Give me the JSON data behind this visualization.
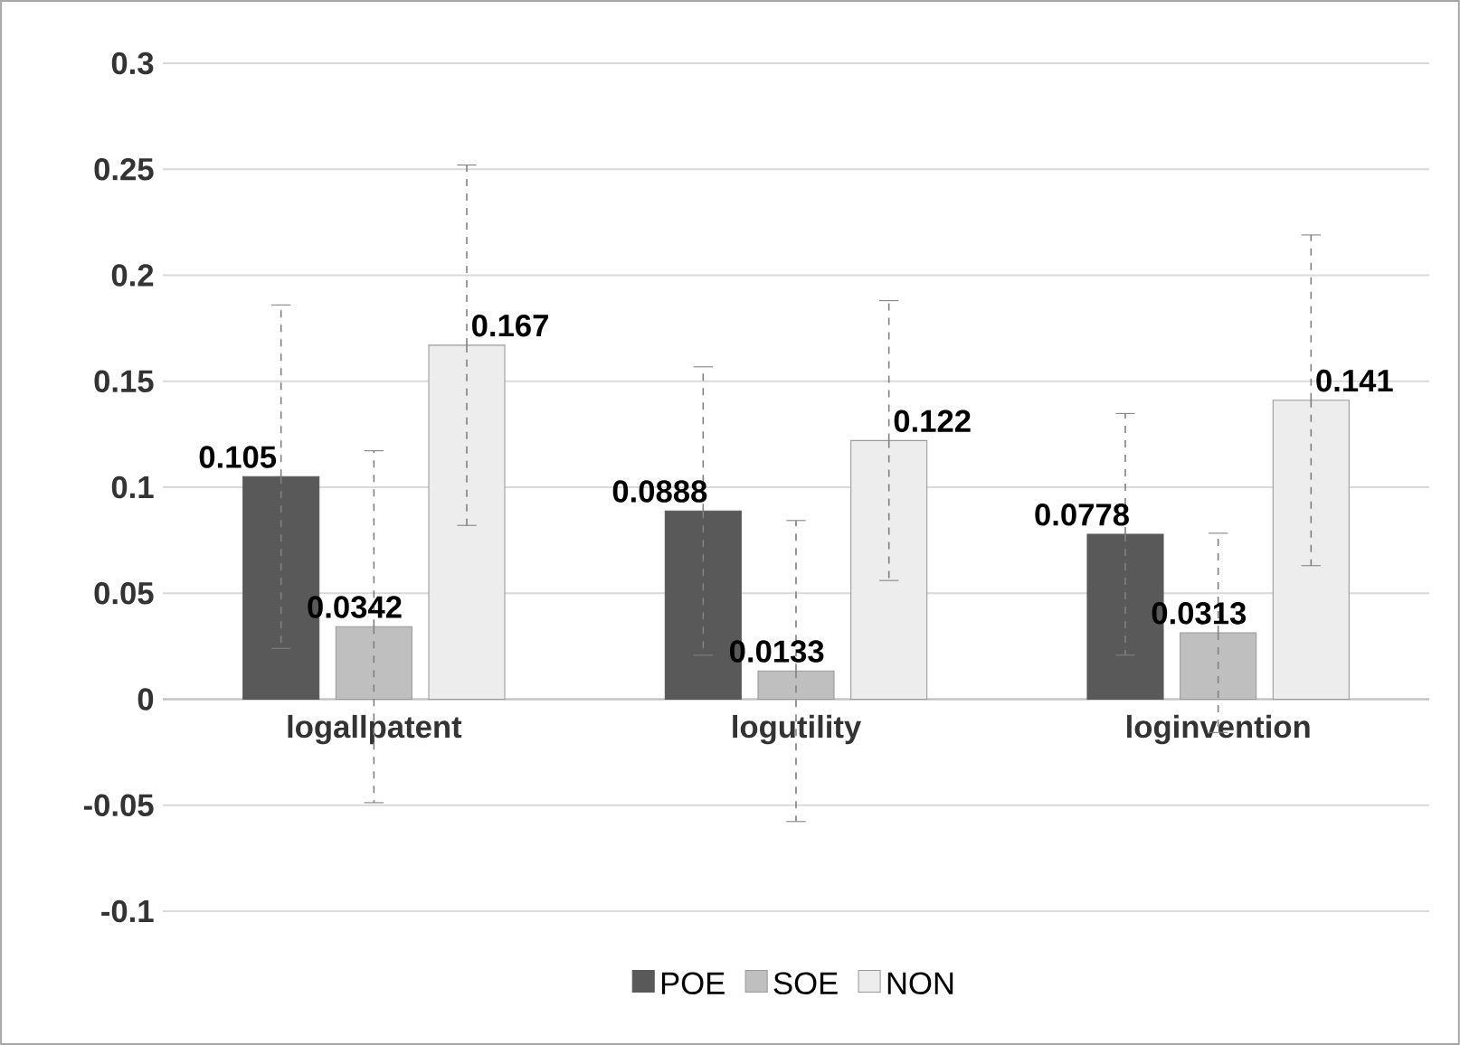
{
  "chart_data": {
    "type": "bar",
    "categories": [
      "logallpatent",
      "logutility",
      "loginvention"
    ],
    "series": [
      {
        "name": "POE",
        "color": "#595959",
        "values": [
          0.105,
          0.0888,
          0.0778
        ],
        "errors": [
          0.081,
          0.068,
          0.057
        ]
      },
      {
        "name": "SOE",
        "color": "#bfbfbf",
        "values": [
          0.0342,
          0.0133,
          0.0313
        ],
        "errors": [
          0.083,
          0.071,
          0.047
        ]
      },
      {
        "name": "NON",
        "color": "#ededed",
        "values": [
          0.167,
          0.122,
          0.141
        ],
        "errors": [
          0.085,
          0.066,
          0.078
        ]
      }
    ],
    "ylim": [
      -0.1,
      0.3
    ],
    "yticks": [
      -0.1,
      -0.05,
      0,
      0.05,
      0.1,
      0.15,
      0.2,
      0.25,
      0.3
    ],
    "grid": "y",
    "legend": "bottom",
    "data_labels": true
  }
}
